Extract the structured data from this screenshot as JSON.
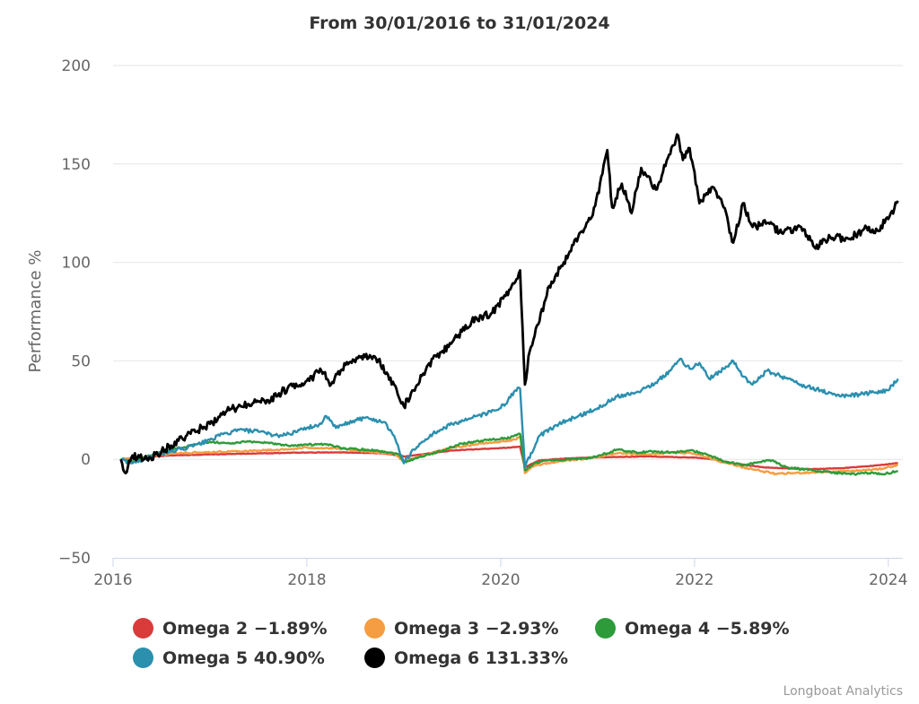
{
  "chart_data": {
    "type": "line",
    "title": "From 30/01/2016 to 31/01/2024",
    "ylabel": "Performance %",
    "xlabel": "",
    "ylim": [
      -50,
      200
    ],
    "xlim": [
      2016.0,
      2024.15
    ],
    "yticks": [
      -50,
      0,
      50,
      100,
      150,
      200
    ],
    "xticks": [
      2016,
      2018,
      2020,
      2022,
      2024
    ],
    "ytick_labels": [
      "−50",
      "0",
      "50",
      "100",
      "150",
      "200"
    ],
    "xtick_labels": [
      "2016",
      "2018",
      "2020",
      "2022",
      "2024"
    ],
    "grid": true,
    "legend_position": "bottom",
    "series": [
      {
        "name": "Omega 2",
        "legend_label": "Omega 2 −1.89%",
        "color": "#d93b3b",
        "points": [
          [
            2016.08,
            0
          ],
          [
            2016.3,
            1
          ],
          [
            2016.6,
            2
          ],
          [
            2017.0,
            2.5
          ],
          [
            2017.5,
            3
          ],
          [
            2018.0,
            3.5
          ],
          [
            2018.4,
            3.5
          ],
          [
            2018.8,
            3
          ],
          [
            2019.0,
            1.5
          ],
          [
            2019.1,
            2
          ],
          [
            2019.5,
            4.5
          ],
          [
            2019.9,
            5.5
          ],
          [
            2020.1,
            6
          ],
          [
            2020.2,
            6.5
          ],
          [
            2020.25,
            -4
          ],
          [
            2020.4,
            -0.5
          ],
          [
            2020.7,
            0.5
          ],
          [
            2021.0,
            1
          ],
          [
            2021.5,
            1.5
          ],
          [
            2021.9,
            1
          ],
          [
            2022.0,
            1
          ],
          [
            2022.2,
            0
          ],
          [
            2022.4,
            -2
          ],
          [
            2022.7,
            -4
          ],
          [
            2022.9,
            -4.5
          ],
          [
            2023.2,
            -5
          ],
          [
            2023.5,
            -4.5
          ],
          [
            2023.8,
            -3.5
          ],
          [
            2024.1,
            -1.9
          ]
        ]
      },
      {
        "name": "Omega 3",
        "legend_label": "Omega 3 −2.93%",
        "color": "#f59d42",
        "points": [
          [
            2016.08,
            0
          ],
          [
            2016.3,
            1
          ],
          [
            2016.6,
            3
          ],
          [
            2016.9,
            3.5
          ],
          [
            2017.2,
            4
          ],
          [
            2017.5,
            4.5
          ],
          [
            2017.8,
            5
          ],
          [
            2018.0,
            6
          ],
          [
            2018.3,
            5.5
          ],
          [
            2018.6,
            4
          ],
          [
            2018.9,
            3
          ],
          [
            2019.0,
            -1
          ],
          [
            2019.2,
            2
          ],
          [
            2019.5,
            6
          ],
          [
            2019.8,
            8
          ],
          [
            2020.0,
            9
          ],
          [
            2020.15,
            10
          ],
          [
            2020.22,
            12
          ],
          [
            2020.25,
            -7
          ],
          [
            2020.35,
            -3
          ],
          [
            2020.6,
            -1
          ],
          [
            2020.9,
            0.5
          ],
          [
            2021.2,
            3
          ],
          [
            2021.5,
            2.5
          ],
          [
            2021.8,
            3.5
          ],
          [
            2022.0,
            3
          ],
          [
            2022.3,
            -1.5
          ],
          [
            2022.5,
            -4
          ],
          [
            2022.7,
            -6
          ],
          [
            2022.85,
            -7.5
          ],
          [
            2023.0,
            -7
          ],
          [
            2023.3,
            -6.5
          ],
          [
            2023.6,
            -6
          ],
          [
            2023.9,
            -5
          ],
          [
            2024.1,
            -2.9
          ]
        ]
      },
      {
        "name": "Omega 4",
        "legend_label": "Omega 4 −5.89%",
        "color": "#2e9b3a",
        "points": [
          [
            2016.08,
            0
          ],
          [
            2016.2,
            -1
          ],
          [
            2016.4,
            2
          ],
          [
            2016.6,
            5
          ],
          [
            2016.8,
            7
          ],
          [
            2017.0,
            9
          ],
          [
            2017.2,
            8
          ],
          [
            2017.4,
            9
          ],
          [
            2017.6,
            8.5
          ],
          [
            2017.8,
            7
          ],
          [
            2018.0,
            7.5
          ],
          [
            2018.2,
            7.5
          ],
          [
            2018.4,
            5.5
          ],
          [
            2018.6,
            5
          ],
          [
            2018.8,
            4
          ],
          [
            2018.95,
            2.5
          ],
          [
            2019.0,
            -1.5
          ],
          [
            2019.15,
            1
          ],
          [
            2019.4,
            4.5
          ],
          [
            2019.6,
            8
          ],
          [
            2019.8,
            9.5
          ],
          [
            2020.0,
            10.5
          ],
          [
            2020.1,
            11
          ],
          [
            2020.2,
            13
          ],
          [
            2020.25,
            -5.5
          ],
          [
            2020.35,
            -2
          ],
          [
            2020.5,
            -0.5
          ],
          [
            2020.7,
            0
          ],
          [
            2020.9,
            0.5
          ],
          [
            2021.1,
            3
          ],
          [
            2021.2,
            5
          ],
          [
            2021.4,
            3.5
          ],
          [
            2021.6,
            4
          ],
          [
            2021.8,
            3.5
          ],
          [
            2021.95,
            4.5
          ],
          [
            2022.1,
            3
          ],
          [
            2022.3,
            -1
          ],
          [
            2022.5,
            -3
          ],
          [
            2022.65,
            -1.5
          ],
          [
            2022.8,
            -0.5
          ],
          [
            2022.95,
            -4
          ],
          [
            2023.1,
            -5
          ],
          [
            2023.3,
            -6
          ],
          [
            2023.5,
            -7
          ],
          [
            2023.65,
            -7.5
          ],
          [
            2023.8,
            -7
          ],
          [
            2023.95,
            -7.5
          ],
          [
            2024.1,
            -5.9
          ]
        ]
      },
      {
        "name": "Omega 5",
        "legend_label": "Omega 5 40.90%",
        "color": "#2b8fae",
        "points": [
          [
            2016.08,
            0
          ],
          [
            2016.2,
            -2
          ],
          [
            2016.35,
            1
          ],
          [
            2016.5,
            3
          ],
          [
            2016.7,
            5
          ],
          [
            2016.9,
            8
          ],
          [
            2017.1,
            12
          ],
          [
            2017.3,
            15
          ],
          [
            2017.5,
            14
          ],
          [
            2017.7,
            12
          ],
          [
            2017.9,
            14
          ],
          [
            2018.0,
            16
          ],
          [
            2018.15,
            18
          ],
          [
            2018.2,
            22
          ],
          [
            2018.3,
            16
          ],
          [
            2018.5,
            20
          ],
          [
            2018.6,
            21
          ],
          [
            2018.8,
            19
          ],
          [
            2018.9,
            12
          ],
          [
            2019.0,
            -2
          ],
          [
            2019.1,
            5
          ],
          [
            2019.3,
            13
          ],
          [
            2019.5,
            18
          ],
          [
            2019.7,
            21
          ],
          [
            2019.9,
            24
          ],
          [
            2020.05,
            28
          ],
          [
            2020.15,
            35
          ],
          [
            2020.2,
            36
          ],
          [
            2020.25,
            -4
          ],
          [
            2020.4,
            12
          ],
          [
            2020.6,
            18
          ],
          [
            2020.8,
            22
          ],
          [
            2021.0,
            26
          ],
          [
            2021.2,
            32
          ],
          [
            2021.4,
            34
          ],
          [
            2021.6,
            39
          ],
          [
            2021.75,
            45
          ],
          [
            2021.85,
            51
          ],
          [
            2021.95,
            46
          ],
          [
            2022.05,
            49
          ],
          [
            2022.15,
            41
          ],
          [
            2022.3,
            46
          ],
          [
            2022.4,
            50
          ],
          [
            2022.5,
            42
          ],
          [
            2022.6,
            38
          ],
          [
            2022.75,
            45
          ],
          [
            2022.9,
            42
          ],
          [
            2023.1,
            38
          ],
          [
            2023.3,
            35
          ],
          [
            2023.5,
            32
          ],
          [
            2023.7,
            33
          ],
          [
            2023.85,
            34
          ],
          [
            2024.0,
            35
          ],
          [
            2024.1,
            40.9
          ]
        ]
      },
      {
        "name": "Omega 6",
        "legend_label": "Omega 6 131.33%",
        "color": "#000000",
        "points": [
          [
            2016.08,
            0
          ],
          [
            2016.13,
            -7
          ],
          [
            2016.2,
            2
          ],
          [
            2016.35,
            0
          ],
          [
            2016.5,
            4
          ],
          [
            2016.6,
            7
          ],
          [
            2016.8,
            13
          ],
          [
            2017.0,
            18
          ],
          [
            2017.2,
            25
          ],
          [
            2017.4,
            28
          ],
          [
            2017.6,
            30
          ],
          [
            2017.8,
            36
          ],
          [
            2018.0,
            40
          ],
          [
            2018.15,
            45
          ],
          [
            2018.25,
            38
          ],
          [
            2018.4,
            48
          ],
          [
            2018.6,
            52
          ],
          [
            2018.75,
            51
          ],
          [
            2018.8,
            44
          ],
          [
            2018.9,
            38
          ],
          [
            2019.0,
            27
          ],
          [
            2019.1,
            35
          ],
          [
            2019.25,
            48
          ],
          [
            2019.4,
            55
          ],
          [
            2019.55,
            62
          ],
          [
            2019.7,
            70
          ],
          [
            2019.9,
            74
          ],
          [
            2020.05,
            83
          ],
          [
            2020.15,
            90
          ],
          [
            2020.2,
            96
          ],
          [
            2020.25,
            38
          ],
          [
            2020.3,
            55
          ],
          [
            2020.4,
            70
          ],
          [
            2020.5,
            88
          ],
          [
            2020.65,
            100
          ],
          [
            2020.8,
            113
          ],
          [
            2020.95,
            124
          ],
          [
            2021.05,
            145
          ],
          [
            2021.1,
            157
          ],
          [
            2021.15,
            128
          ],
          [
            2021.25,
            140
          ],
          [
            2021.35,
            125
          ],
          [
            2021.45,
            148
          ],
          [
            2021.6,
            137
          ],
          [
            2021.75,
            155
          ],
          [
            2021.82,
            165
          ],
          [
            2021.88,
            152
          ],
          [
            2021.95,
            158
          ],
          [
            2022.05,
            130
          ],
          [
            2022.2,
            138
          ],
          [
            2022.3,
            128
          ],
          [
            2022.4,
            110
          ],
          [
            2022.5,
            130
          ],
          [
            2022.6,
            118
          ],
          [
            2022.75,
            120
          ],
          [
            2022.9,
            115
          ],
          [
            2023.1,
            118
          ],
          [
            2023.25,
            107
          ],
          [
            2023.4,
            113
          ],
          [
            2023.6,
            112
          ],
          [
            2023.75,
            117
          ],
          [
            2023.85,
            115
          ],
          [
            2024.0,
            122
          ],
          [
            2024.1,
            131.3
          ]
        ]
      }
    ]
  },
  "credit": "Longboat Analytics"
}
